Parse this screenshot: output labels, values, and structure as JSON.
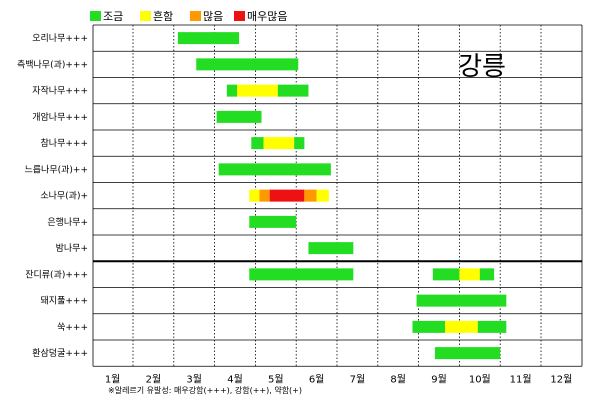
{
  "chart_data": {
    "type": "gantt",
    "region": "강릉",
    "x_unit_labels": [
      "1월",
      "2월",
      "3월",
      "4월",
      "5월",
      "6월",
      "7월",
      "8월",
      "9월",
      "10월",
      "11월",
      "12월"
    ],
    "legend": [
      {
        "key": "low",
        "label": "조금",
        "color": "#22dd22"
      },
      {
        "key": "common",
        "label": "흔함",
        "color": "#ffff00"
      },
      {
        "key": "many",
        "label": "많음",
        "color": "#ff9900"
      },
      {
        "key": "verymany",
        "label": "매우많음",
        "color": "#ee1111"
      }
    ],
    "rows": [
      {
        "name": "오리나무+++",
        "segments": [
          {
            "start": 2.1,
            "end": 3.6,
            "level": "low"
          }
        ]
      },
      {
        "name": "측백나무(과)+++",
        "segments": [
          {
            "start": 2.55,
            "end": 5.05,
            "level": "low"
          }
        ]
      },
      {
        "name": "자작나무+++",
        "segments": [
          {
            "start": 3.3,
            "end": 3.55,
            "level": "low"
          },
          {
            "start": 3.55,
            "end": 4.55,
            "level": "common"
          },
          {
            "start": 4.55,
            "end": 5.3,
            "level": "low"
          }
        ]
      },
      {
        "name": "개암나무+++",
        "segments": [
          {
            "start": 3.05,
            "end": 4.15,
            "level": "low"
          }
        ]
      },
      {
        "name": "참나무+++",
        "segments": [
          {
            "start": 3.9,
            "end": 4.2,
            "level": "low"
          },
          {
            "start": 4.2,
            "end": 4.95,
            "level": "common"
          },
          {
            "start": 4.95,
            "end": 5.2,
            "level": "low"
          }
        ]
      },
      {
        "name": "느릅나무(과)++",
        "segments": [
          {
            "start": 3.1,
            "end": 5.85,
            "level": "low"
          }
        ]
      },
      {
        "name": "소나무(과)+",
        "segments": [
          {
            "start": 3.85,
            "end": 4.1,
            "level": "common"
          },
          {
            "start": 4.1,
            "end": 4.35,
            "level": "many"
          },
          {
            "start": 4.35,
            "end": 5.2,
            "level": "verymany"
          },
          {
            "start": 5.2,
            "end": 5.5,
            "level": "many"
          },
          {
            "start": 5.5,
            "end": 5.8,
            "level": "common"
          }
        ]
      },
      {
        "name": "은행나무+",
        "segments": [
          {
            "start": 3.85,
            "end": 5.0,
            "level": "low"
          }
        ]
      },
      {
        "name": "밤나무+",
        "segments": [
          {
            "start": 5.3,
            "end": 6.4,
            "level": "low"
          }
        ]
      },
      {
        "name": "잔디류(과)+++",
        "segments": [
          {
            "start": 3.85,
            "end": 6.4,
            "level": "low"
          },
          {
            "start": 8.35,
            "end": 9.0,
            "level": "low"
          },
          {
            "start": 9.0,
            "end": 9.5,
            "level": "common"
          },
          {
            "start": 9.5,
            "end": 9.85,
            "level": "low"
          }
        ]
      },
      {
        "name": "돼지풀+++",
        "segments": [
          {
            "start": 7.95,
            "end": 10.15,
            "level": "low"
          }
        ]
      },
      {
        "name": "쑥+++",
        "segments": [
          {
            "start": 7.85,
            "end": 8.65,
            "level": "low"
          },
          {
            "start": 8.65,
            "end": 9.45,
            "level": "common"
          },
          {
            "start": 9.45,
            "end": 10.15,
            "level": "low"
          }
        ]
      },
      {
        "name": "환삼덩굴+++",
        "segments": [
          {
            "start": 8.4,
            "end": 10.0,
            "level": "low"
          }
        ]
      }
    ],
    "note": "※알레르기 유발성: 매우강함(+++), 강함(++), 약함(+)"
  }
}
